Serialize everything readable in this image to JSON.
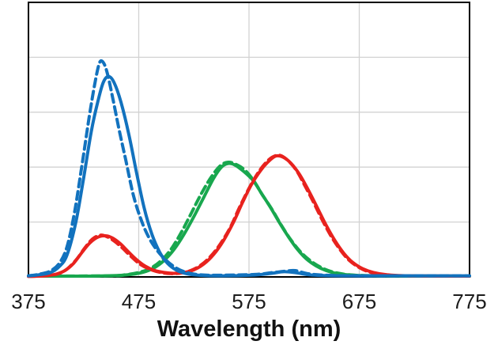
{
  "chart_data": {
    "type": "line",
    "title": "",
    "xlabel": "Wavelength (nm)",
    "ylabel": "",
    "xlim": [
      375,
      775
    ],
    "ylim": [
      0,
      1
    ],
    "x_ticks": [
      375,
      475,
      575,
      675,
      775
    ],
    "y_gridline_step": 0.2,
    "grid": true,
    "legend_position": "none",
    "colors": {
      "blue": "#1272BE",
      "green": "#18A74E",
      "red": "#E8221E",
      "grid": "#D2D2D2",
      "axis_box": "#000000",
      "tick_text": "#1c1c1c"
    },
    "series": [
      {
        "name": "green-solid",
        "color_key": "green",
        "style": "solid",
        "points": [
          [
            375,
            0.003
          ],
          [
            430,
            0.003
          ],
          [
            455,
            0.005
          ],
          [
            468,
            0.009
          ],
          [
            479,
            0.017
          ],
          [
            489,
            0.033
          ],
          [
            498,
            0.06
          ],
          [
            507,
            0.1
          ],
          [
            516,
            0.155
          ],
          [
            525,
            0.22
          ],
          [
            534,
            0.29
          ],
          [
            543,
            0.36
          ],
          [
            550,
            0.4
          ],
          [
            556,
            0.413
          ],
          [
            562,
            0.408
          ],
          [
            570,
            0.385
          ],
          [
            579,
            0.35
          ],
          [
            587,
            0.3
          ],
          [
            595,
            0.25
          ],
          [
            603,
            0.195
          ],
          [
            611,
            0.145
          ],
          [
            619,
            0.1
          ],
          [
            627,
            0.066
          ],
          [
            636,
            0.04
          ],
          [
            645,
            0.023
          ],
          [
            655,
            0.012
          ],
          [
            667,
            0.007
          ],
          [
            685,
            0.004
          ],
          [
            730,
            0.003
          ],
          [
            775,
            0.003
          ]
        ]
      },
      {
        "name": "green-dashed",
        "color_key": "green",
        "style": "dashed",
        "points": [
          [
            375,
            0.003
          ],
          [
            450,
            0.004
          ],
          [
            463,
            0.008
          ],
          [
            475,
            0.016
          ],
          [
            486,
            0.032
          ],
          [
            496,
            0.062
          ],
          [
            505,
            0.105
          ],
          [
            514,
            0.165
          ],
          [
            523,
            0.235
          ],
          [
            532,
            0.305
          ],
          [
            541,
            0.365
          ],
          [
            549,
            0.405
          ],
          [
            556,
            0.418
          ],
          [
            563,
            0.41
          ],
          [
            571,
            0.39
          ],
          [
            579,
            0.352
          ],
          [
            587,
            0.3
          ],
          [
            596,
            0.245
          ],
          [
            604,
            0.19
          ],
          [
            613,
            0.135
          ],
          [
            622,
            0.09
          ],
          [
            631,
            0.058
          ],
          [
            641,
            0.033
          ],
          [
            651,
            0.018
          ],
          [
            663,
            0.009
          ],
          [
            680,
            0.005
          ],
          [
            730,
            0.003
          ],
          [
            775,
            0.003
          ]
        ]
      },
      {
        "name": "red-solid",
        "color_key": "red",
        "style": "solid",
        "points": [
          [
            375,
            0.002
          ],
          [
            390,
            0.004
          ],
          [
            400,
            0.01
          ],
          [
            408,
            0.023
          ],
          [
            416,
            0.05
          ],
          [
            424,
            0.092
          ],
          [
            431,
            0.125
          ],
          [
            438,
            0.145
          ],
          [
            445,
            0.15
          ],
          [
            451,
            0.142
          ],
          [
            458,
            0.122
          ],
          [
            465,
            0.094
          ],
          [
            473,
            0.063
          ],
          [
            481,
            0.039
          ],
          [
            489,
            0.024
          ],
          [
            498,
            0.016
          ],
          [
            507,
            0.013
          ],
          [
            516,
            0.016
          ],
          [
            525,
            0.026
          ],
          [
            534,
            0.047
          ],
          [
            543,
            0.082
          ],
          [
            552,
            0.133
          ],
          [
            561,
            0.2
          ],
          [
            569,
            0.27
          ],
          [
            577,
            0.335
          ],
          [
            585,
            0.385
          ],
          [
            592,
            0.418
          ],
          [
            599,
            0.44
          ],
          [
            606,
            0.436
          ],
          [
            613,
            0.414
          ],
          [
            621,
            0.372
          ],
          [
            629,
            0.315
          ],
          [
            637,
            0.252
          ],
          [
            645,
            0.188
          ],
          [
            653,
            0.132
          ],
          [
            661,
            0.086
          ],
          [
            669,
            0.053
          ],
          [
            678,
            0.03
          ],
          [
            688,
            0.016
          ],
          [
            700,
            0.008
          ],
          [
            720,
            0.004
          ],
          [
            775,
            0.003
          ]
        ]
      },
      {
        "name": "red-dashed",
        "color_key": "red",
        "style": "dashed",
        "points": [
          [
            375,
            0.002
          ],
          [
            392,
            0.005
          ],
          [
            403,
            0.013
          ],
          [
            411,
            0.032
          ],
          [
            419,
            0.066
          ],
          [
            426,
            0.105
          ],
          [
            433,
            0.138
          ],
          [
            440,
            0.152
          ],
          [
            446,
            0.147
          ],
          [
            453,
            0.13
          ],
          [
            460,
            0.106
          ],
          [
            468,
            0.075
          ],
          [
            476,
            0.047
          ],
          [
            485,
            0.028
          ],
          [
            494,
            0.017
          ],
          [
            504,
            0.012
          ],
          [
            513,
            0.014
          ],
          [
            522,
            0.023
          ],
          [
            531,
            0.042
          ],
          [
            540,
            0.074
          ],
          [
            549,
            0.12
          ],
          [
            558,
            0.18
          ],
          [
            566,
            0.25
          ],
          [
            574,
            0.315
          ],
          [
            582,
            0.372
          ],
          [
            589,
            0.41
          ],
          [
            596,
            0.436
          ],
          [
            603,
            0.443
          ],
          [
            610,
            0.425
          ],
          [
            618,
            0.388
          ],
          [
            626,
            0.33
          ],
          [
            634,
            0.268
          ],
          [
            642,
            0.203
          ],
          [
            650,
            0.145
          ],
          [
            658,
            0.097
          ],
          [
            666,
            0.06
          ],
          [
            675,
            0.034
          ],
          [
            684,
            0.018
          ],
          [
            696,
            0.009
          ],
          [
            715,
            0.004
          ],
          [
            775,
            0.003
          ]
        ]
      },
      {
        "name": "blue-solid",
        "color_key": "blue",
        "style": "solid",
        "points": [
          [
            375,
            0.004
          ],
          [
            385,
            0.008
          ],
          [
            395,
            0.016
          ],
          [
            403,
            0.038
          ],
          [
            410,
            0.08
          ],
          [
            418,
            0.2
          ],
          [
            425,
            0.36
          ],
          [
            432,
            0.53
          ],
          [
            438,
            0.64
          ],
          [
            443,
            0.71
          ],
          [
            448,
            0.73
          ],
          [
            453,
            0.705
          ],
          [
            459,
            0.635
          ],
          [
            466,
            0.52
          ],
          [
            473,
            0.38
          ],
          [
            480,
            0.25
          ],
          [
            487,
            0.155
          ],
          [
            494,
            0.09
          ],
          [
            501,
            0.05
          ],
          [
            509,
            0.025
          ],
          [
            518,
            0.012
          ],
          [
            530,
            0.006
          ],
          [
            550,
            0.004
          ],
          [
            580,
            0.007
          ],
          [
            595,
            0.013
          ],
          [
            607,
            0.019
          ],
          [
            618,
            0.015
          ],
          [
            632,
            0.007
          ],
          [
            660,
            0.004
          ],
          [
            720,
            0.004
          ],
          [
            775,
            0.004
          ]
        ]
      },
      {
        "name": "blue-dashed",
        "color_key": "blue",
        "style": "dashed",
        "points": [
          [
            375,
            0.004
          ],
          [
            385,
            0.01
          ],
          [
            395,
            0.022
          ],
          [
            403,
            0.05
          ],
          [
            410,
            0.11
          ],
          [
            417,
            0.24
          ],
          [
            424,
            0.42
          ],
          [
            430,
            0.58
          ],
          [
            435,
            0.7
          ],
          [
            439,
            0.775
          ],
          [
            442,
            0.785
          ],
          [
            446,
            0.75
          ],
          [
            451,
            0.66
          ],
          [
            457,
            0.54
          ],
          [
            463,
            0.43
          ],
          [
            470,
            0.3
          ],
          [
            477,
            0.21
          ],
          [
            484,
            0.145
          ],
          [
            492,
            0.095
          ],
          [
            500,
            0.06
          ],
          [
            508,
            0.035
          ],
          [
            517,
            0.018
          ],
          [
            528,
            0.009
          ],
          [
            545,
            0.006
          ],
          [
            580,
            0.009
          ],
          [
            597,
            0.016
          ],
          [
            608,
            0.021
          ],
          [
            617,
            0.023
          ],
          [
            628,
            0.012
          ],
          [
            645,
            0.006
          ],
          [
            680,
            0.004
          ],
          [
            730,
            0.004
          ],
          [
            775,
            0.004
          ]
        ]
      }
    ]
  }
}
